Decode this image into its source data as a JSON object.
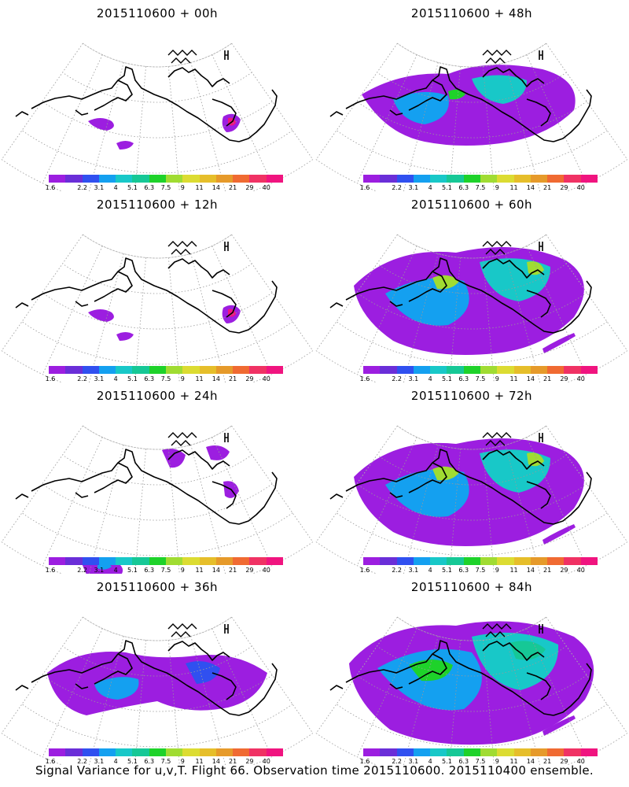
{
  "panels": [
    {
      "title": "2015110600 + 00h",
      "level": 0
    },
    {
      "title": "2015110600 + 48h",
      "level": 3
    },
    {
      "title": "2015110600 + 12h",
      "level": 0
    },
    {
      "title": "2015110600 + 60h",
      "level": 4
    },
    {
      "title": "2015110600 + 24h",
      "level": 1
    },
    {
      "title": "2015110600 + 72h",
      "level": 4
    },
    {
      "title": "2015110600 + 36h",
      "level": 2
    },
    {
      "title": "2015110600 + 84h",
      "level": 5
    }
  ],
  "colorbar": {
    "labels": [
      "1.6",
      "2.2",
      "3.1",
      "4",
      "5.1",
      "6.3",
      "7.5",
      "9",
      "11",
      "14",
      "21",
      "29",
      "40"
    ],
    "colors": [
      "#9c1ee0",
      "#6a2ed8",
      "#3050f0",
      "#14a0f0",
      "#18c8c8",
      "#16c896",
      "#1ed22a",
      "#a0dc32",
      "#dcdc32",
      "#e6be2a",
      "#e69a2a",
      "#f06a32",
      "#f03264",
      "#f0147f"
    ]
  },
  "footer": "Signal Variance for u,v,T. Flight 66. Observation time 2015110600. 2015110400 ensemble."
}
